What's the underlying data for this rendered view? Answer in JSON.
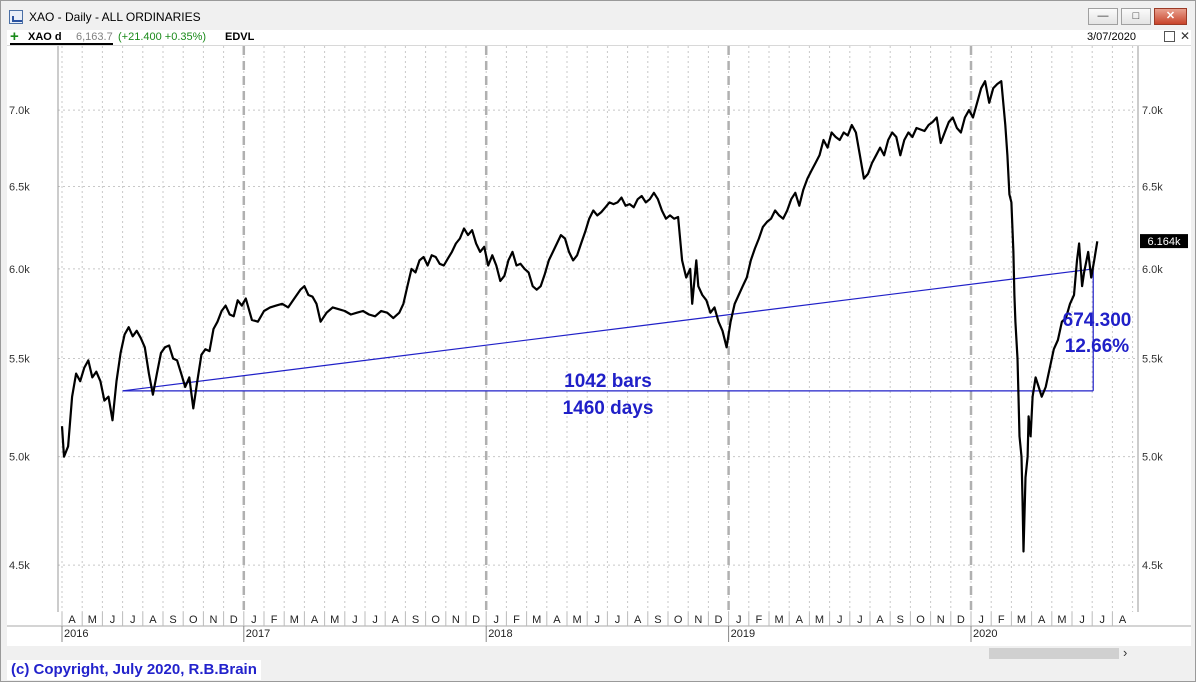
{
  "window": {
    "title": "XAO - Daily - ALL ORDINARIES",
    "controls": {
      "minimize": "—",
      "maximize": "□",
      "close": "✕"
    }
  },
  "header": {
    "symbol": "XAO d",
    "last": "6,163.7",
    "change": "(+21.400 +0.35%)",
    "indicator": "EDVL",
    "date": "3/07/2020",
    "close_glyph": "✕"
  },
  "footer": {
    "copyright": "(c) Copyright, July 2020, R.B.Brain"
  },
  "chart_data": {
    "type": "line",
    "y_scale": "log",
    "ylim": [
      4300,
      7450
    ],
    "yticks": [
      {
        "value": 4500,
        "label": "4.5k"
      },
      {
        "value": 5000,
        "label": "5.0k"
      },
      {
        "value": 5500,
        "label": "5.5k"
      },
      {
        "value": 6000,
        "label": "6.0k"
      },
      {
        "value": 6500,
        "label": "6.5k"
      },
      {
        "value": 7000,
        "label": "7.0k"
      }
    ],
    "month_labels": [
      "A",
      "M",
      "J",
      "J",
      "A",
      "S",
      "O",
      "N",
      "D",
      "J",
      "F",
      "M",
      "A",
      "M",
      "J",
      "J",
      "A",
      "S",
      "O",
      "N",
      "D",
      "J",
      "F",
      "M",
      "A",
      "M",
      "J",
      "J",
      "A",
      "S",
      "O",
      "N",
      "D",
      "J",
      "F",
      "M",
      "A",
      "M",
      "J",
      "J",
      "A",
      "S",
      "O",
      "N",
      "D",
      "J",
      "F",
      "M",
      "A",
      "M",
      "J",
      "J",
      "A"
    ],
    "year_labels": [
      {
        "label": "2016",
        "month_index": 0
      },
      {
        "label": "2017",
        "month_index": 9
      },
      {
        "label": "2018",
        "month_index": 21
      },
      {
        "label": "2019",
        "month_index": 33
      },
      {
        "label": "2020",
        "month_index": 45
      }
    ],
    "grid": true,
    "series": [
      {
        "values": [
          [
            0,
            5150
          ],
          [
            0.1,
            5000
          ],
          [
            0.3,
            5050
          ],
          [
            0.5,
            5300
          ],
          [
            0.7,
            5420
          ],
          [
            0.9,
            5380
          ],
          [
            1.1,
            5450
          ],
          [
            1.3,
            5490
          ],
          [
            1.5,
            5400
          ],
          [
            1.7,
            5430
          ],
          [
            1.9,
            5380
          ],
          [
            2.1,
            5280
          ],
          [
            2.3,
            5300
          ],
          [
            2.5,
            5180
          ],
          [
            2.7,
            5380
          ],
          [
            2.9,
            5530
          ],
          [
            3.1,
            5630
          ],
          [
            3.3,
            5670
          ],
          [
            3.5,
            5620
          ],
          [
            3.7,
            5650
          ],
          [
            3.9,
            5610
          ],
          [
            4.1,
            5560
          ],
          [
            4.3,
            5420
          ],
          [
            4.5,
            5310
          ],
          [
            4.7,
            5420
          ],
          [
            4.9,
            5530
          ],
          [
            5.1,
            5560
          ],
          [
            5.3,
            5570
          ],
          [
            5.5,
            5500
          ],
          [
            5.7,
            5490
          ],
          [
            5.9,
            5420
          ],
          [
            6.1,
            5350
          ],
          [
            6.3,
            5400
          ],
          [
            6.5,
            5240
          ],
          [
            6.7,
            5380
          ],
          [
            6.9,
            5520
          ],
          [
            7.1,
            5550
          ],
          [
            7.3,
            5540
          ],
          [
            7.5,
            5660
          ],
          [
            7.7,
            5700
          ],
          [
            7.9,
            5760
          ],
          [
            8.1,
            5790
          ],
          [
            8.3,
            5740
          ],
          [
            8.5,
            5730
          ],
          [
            8.7,
            5820
          ],
          [
            8.9,
            5790
          ],
          [
            9.1,
            5830
          ],
          [
            9.4,
            5710
          ],
          [
            9.7,
            5700
          ],
          [
            10,
            5760
          ],
          [
            10.3,
            5780
          ],
          [
            10.6,
            5790
          ],
          [
            10.9,
            5800
          ],
          [
            11.2,
            5780
          ],
          [
            11.5,
            5830
          ],
          [
            11.8,
            5880
          ],
          [
            12,
            5900
          ],
          [
            12.2,
            5850
          ],
          [
            12.4,
            5840
          ],
          [
            12.6,
            5800
          ],
          [
            12.8,
            5700
          ],
          [
            13.1,
            5750
          ],
          [
            13.4,
            5780
          ],
          [
            13.7,
            5770
          ],
          [
            14,
            5760
          ],
          [
            14.3,
            5740
          ],
          [
            14.6,
            5750
          ],
          [
            14.9,
            5760
          ],
          [
            15.2,
            5740
          ],
          [
            15.5,
            5730
          ],
          [
            15.8,
            5760
          ],
          [
            16.1,
            5750
          ],
          [
            16.4,
            5720
          ],
          [
            16.7,
            5750
          ],
          [
            16.9,
            5800
          ],
          [
            17.1,
            5900
          ],
          [
            17.3,
            6000
          ],
          [
            17.5,
            5980
          ],
          [
            17.7,
            6050
          ],
          [
            17.9,
            6070
          ],
          [
            18.1,
            6020
          ],
          [
            18.3,
            6080
          ],
          [
            18.5,
            6070
          ],
          [
            18.7,
            6030
          ],
          [
            18.9,
            6020
          ],
          [
            19.1,
            6060
          ],
          [
            19.3,
            6100
          ],
          [
            19.5,
            6150
          ],
          [
            19.7,
            6180
          ],
          [
            19.9,
            6240
          ],
          [
            20.1,
            6200
          ],
          [
            20.3,
            6230
          ],
          [
            20.5,
            6150
          ],
          [
            20.7,
            6100
          ],
          [
            20.9,
            6130
          ],
          [
            21.1,
            6020
          ],
          [
            21.3,
            6080
          ],
          [
            21.5,
            6020
          ],
          [
            21.7,
            5930
          ],
          [
            21.9,
            5960
          ],
          [
            22.1,
            6050
          ],
          [
            22.3,
            6100
          ],
          [
            22.5,
            6020
          ],
          [
            22.7,
            6030
          ],
          [
            22.9,
            6000
          ],
          [
            23.1,
            5980
          ],
          [
            23.3,
            5900
          ],
          [
            23.5,
            5880
          ],
          [
            23.7,
            5900
          ],
          [
            23.9,
            5970
          ],
          [
            24.1,
            6050
          ],
          [
            24.3,
            6100
          ],
          [
            24.5,
            6150
          ],
          [
            24.7,
            6200
          ],
          [
            24.9,
            6180
          ],
          [
            25.1,
            6100
          ],
          [
            25.3,
            6050
          ],
          [
            25.5,
            6080
          ],
          [
            25.7,
            6150
          ],
          [
            25.9,
            6220
          ],
          [
            26.1,
            6300
          ],
          [
            26.3,
            6350
          ],
          [
            26.5,
            6320
          ],
          [
            26.7,
            6340
          ],
          [
            26.9,
            6370
          ],
          [
            27.1,
            6400
          ],
          [
            27.3,
            6390
          ],
          [
            27.5,
            6400
          ],
          [
            27.7,
            6430
          ],
          [
            27.9,
            6380
          ],
          [
            28.1,
            6390
          ],
          [
            28.3,
            6370
          ],
          [
            28.5,
            6420
          ],
          [
            28.7,
            6440
          ],
          [
            28.9,
            6400
          ],
          [
            29.1,
            6420
          ],
          [
            29.3,
            6460
          ],
          [
            29.5,
            6420
          ],
          [
            29.7,
            6350
          ],
          [
            29.9,
            6300
          ],
          [
            30.1,
            6320
          ],
          [
            30.3,
            6300
          ],
          [
            30.5,
            6310
          ],
          [
            30.7,
            6050
          ],
          [
            30.9,
            5950
          ],
          [
            31.1,
            6000
          ],
          [
            31.2,
            5800
          ],
          [
            31.4,
            6050
          ],
          [
            31.5,
            5900
          ],
          [
            31.7,
            5850
          ],
          [
            31.9,
            5820
          ],
          [
            32.1,
            5750
          ],
          [
            32.3,
            5780
          ],
          [
            32.5,
            5700
          ],
          [
            32.7,
            5650
          ],
          [
            32.9,
            5560
          ],
          [
            33.1,
            5700
          ],
          [
            33.3,
            5800
          ],
          [
            33.5,
            5850
          ],
          [
            33.7,
            5900
          ],
          [
            33.9,
            5950
          ],
          [
            34.1,
            6050
          ],
          [
            34.3,
            6120
          ],
          [
            34.5,
            6180
          ],
          [
            34.7,
            6250
          ],
          [
            34.9,
            6280
          ],
          [
            35.1,
            6300
          ],
          [
            35.3,
            6350
          ],
          [
            35.5,
            6320
          ],
          [
            35.7,
            6300
          ],
          [
            35.9,
            6350
          ],
          [
            36.1,
            6420
          ],
          [
            36.3,
            6460
          ],
          [
            36.5,
            6380
          ],
          [
            36.7,
            6480
          ],
          [
            36.9,
            6550
          ],
          [
            37.1,
            6600
          ],
          [
            37.3,
            6650
          ],
          [
            37.5,
            6700
          ],
          [
            37.7,
            6800
          ],
          [
            37.9,
            6750
          ],
          [
            38.1,
            6850
          ],
          [
            38.3,
            6820
          ],
          [
            38.5,
            6800
          ],
          [
            38.7,
            6850
          ],
          [
            38.9,
            6830
          ],
          [
            39.1,
            6900
          ],
          [
            39.3,
            6850
          ],
          [
            39.5,
            6700
          ],
          [
            39.7,
            6550
          ],
          [
            39.9,
            6580
          ],
          [
            40.1,
            6650
          ],
          [
            40.3,
            6700
          ],
          [
            40.5,
            6750
          ],
          [
            40.7,
            6700
          ],
          [
            40.9,
            6800
          ],
          [
            41.1,
            6850
          ],
          [
            41.3,
            6820
          ],
          [
            41.5,
            6700
          ],
          [
            41.7,
            6800
          ],
          [
            41.9,
            6850
          ],
          [
            42.1,
            6820
          ],
          [
            42.3,
            6880
          ],
          [
            42.5,
            6870
          ],
          [
            42.7,
            6860
          ],
          [
            42.9,
            6900
          ],
          [
            43.1,
            6920
          ],
          [
            43.3,
            6950
          ],
          [
            43.5,
            6780
          ],
          [
            43.7,
            6850
          ],
          [
            43.9,
            6920
          ],
          [
            44.1,
            6950
          ],
          [
            44.3,
            6880
          ],
          [
            44.5,
            6850
          ],
          [
            44.7,
            6950
          ],
          [
            44.9,
            7000
          ],
          [
            45.1,
            6950
          ],
          [
            45.3,
            7050
          ],
          [
            45.5,
            7150
          ],
          [
            45.7,
            7200
          ],
          [
            45.9,
            7050
          ],
          [
            46.1,
            7150
          ],
          [
            46.3,
            7180
          ],
          [
            46.5,
            7200
          ],
          [
            46.7,
            6900
          ],
          [
            46.8,
            6700
          ],
          [
            46.9,
            6450
          ],
          [
            47.0,
            6400
          ],
          [
            47.1,
            6100
          ],
          [
            47.15,
            5850
          ],
          [
            47.2,
            5700
          ],
          [
            47.3,
            5500
          ],
          [
            47.35,
            5300
          ],
          [
            47.4,
            5100
          ],
          [
            47.5,
            5000
          ],
          [
            47.55,
            4800
          ],
          [
            47.6,
            4560
          ],
          [
            47.7,
            4900
          ],
          [
            47.8,
            5000
          ],
          [
            47.85,
            5200
          ],
          [
            47.95,
            5100
          ],
          [
            48.05,
            5300
          ],
          [
            48.2,
            5400
          ],
          [
            48.35,
            5350
          ],
          [
            48.5,
            5300
          ],
          [
            48.7,
            5350
          ],
          [
            48.9,
            5450
          ],
          [
            49.1,
            5550
          ],
          [
            49.3,
            5600
          ],
          [
            49.5,
            5700
          ],
          [
            49.7,
            5720
          ],
          [
            49.9,
            5800
          ],
          [
            50.1,
            5850
          ],
          [
            50.25,
            6050
          ],
          [
            50.35,
            6150
          ],
          [
            50.5,
            5900
          ],
          [
            50.6,
            5980
          ],
          [
            50.8,
            6100
          ],
          [
            50.95,
            5950
          ],
          [
            51.1,
            6050
          ],
          [
            51.25,
            6163
          ]
        ]
      }
    ],
    "annotations": {
      "trendline": {
        "from": [
          3.0,
          5330
        ],
        "to": [
          51.05,
          6000
        ]
      },
      "baseline": {
        "from": [
          3.0,
          5330
        ],
        "to": [
          51.05,
          5330
        ]
      },
      "vertical": {
        "from": [
          51.05,
          5330
        ],
        "to": [
          51.05,
          6000
        ]
      },
      "bars_label": "1042 bars",
      "days_label": "1460 days",
      "change_label": "674.300",
      "pct_label": "12.66%"
    },
    "last_value_tag": {
      "label": "6.164k",
      "value": 6164
    },
    "colors": {
      "series": "#000000",
      "annotation": "#2020c8",
      "grid": "#c8c8c8",
      "year_divider": "#b0b0b0"
    }
  }
}
